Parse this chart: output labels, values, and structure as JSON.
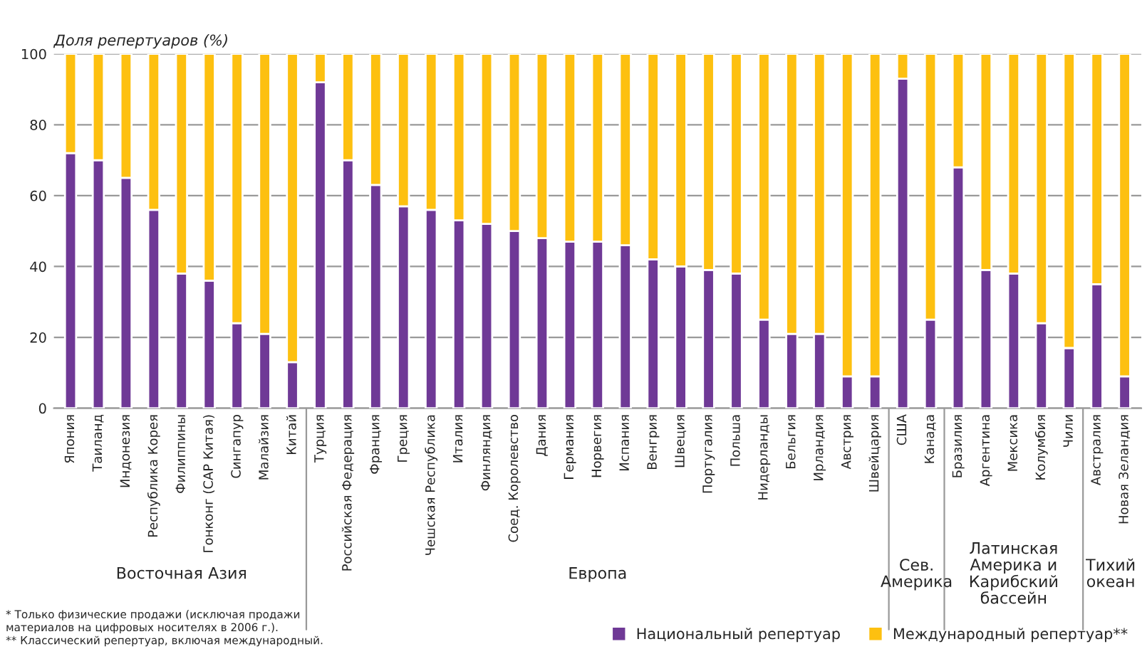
{
  "chart_data": {
    "type": "bar",
    "stacked": true,
    "ylabel": "Доля репертуаров (%)",
    "categories": [
      "Япония",
      "Таиланд",
      "Индонезия",
      "Республика Корея",
      "Филиппины",
      "Гонконг (САР Китая)",
      "Сингапур",
      "Малайзия",
      "Китай",
      "Турция",
      "Российская Федерация",
      "Франция",
      "Греция",
      "Чешская Республика",
      "Италия",
      "Финляндия",
      "Соед. Королевство",
      "Дания",
      "Германия",
      "Норвегия",
      "Испания",
      "Венгрия",
      "Швеция",
      "Португалия",
      "Польша",
      "Нидерланды",
      "Бельгия",
      "Ирландия",
      "Австрия",
      "Швейцария",
      "США",
      "Канада",
      "Бразилия",
      "Аргентина",
      "Мексика",
      "Колумбия",
      "Чили",
      "Австралия",
      "Новая Зеландия"
    ],
    "series": [
      {
        "name": "Национальный репертуар",
        "color": "#6f3996",
        "values": [
          72,
          70,
          65,
          56,
          38,
          36,
          24,
          21,
          13,
          92,
          70,
          63,
          57,
          56,
          53,
          52,
          50,
          48,
          47,
          47,
          46,
          42,
          40,
          39,
          38,
          25,
          21,
          21,
          9,
          9,
          93,
          25,
          68,
          39,
          38,
          24,
          17,
          35,
          9
        ]
      },
      {
        "name": "Международный репертуар**",
        "color": "#fdc010",
        "values": [
          28,
          30,
          35,
          44,
          62,
          64,
          76,
          79,
          87,
          8,
          30,
          37,
          43,
          44,
          47,
          48,
          50,
          52,
          53,
          53,
          54,
          58,
          60,
          61,
          62,
          75,
          79,
          79,
          91,
          91,
          7,
          75,
          32,
          61,
          62,
          76,
          83,
          65,
          91
        ]
      }
    ],
    "ylim": [
      0,
      100
    ],
    "yticks": [
      0,
      20,
      40,
      60,
      80,
      100
    ],
    "grid": "y",
    "legend": "bottom right",
    "annotations": [
      "Восточная Азия",
      "Европа",
      "Сев.\nАмерика",
      "Латинская\nАмерика и\nКарибский\nбассейн",
      "Тихий\nокеан",
      "* Только физические продажи (исключая продажи\nматериалов на цифровых носителях в 2006 г.).\n** Классический репертуар, включая международный."
    ]
  }
}
